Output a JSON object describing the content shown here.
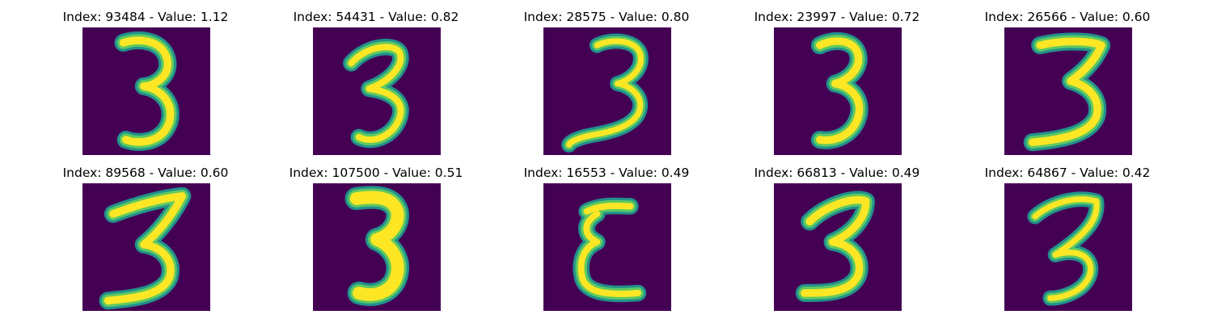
{
  "chart_data": [
    {
      "type": "heatmap",
      "title": "Index: 93484 - Value: 1.12",
      "index": 93484,
      "value": 1.12,
      "content": "handwritten digit 3",
      "colormap": "viridis"
    },
    {
      "type": "heatmap",
      "title": "Index: 54431 - Value: 0.82",
      "index": 54431,
      "value": 0.82,
      "content": "handwritten digit 3",
      "colormap": "viridis"
    },
    {
      "type": "heatmap",
      "title": "Index: 28575 - Value: 0.80",
      "index": 28575,
      "value": 0.8,
      "content": "handwritten digit 3",
      "colormap": "viridis"
    },
    {
      "type": "heatmap",
      "title": "Index: 23997 - Value: 0.72",
      "index": 23997,
      "value": 0.72,
      "content": "handwritten digit 3",
      "colormap": "viridis"
    },
    {
      "type": "heatmap",
      "title": "Index: 26566 - Value: 0.60",
      "index": 26566,
      "value": 0.6,
      "content": "handwritten digit 3",
      "colormap": "viridis"
    },
    {
      "type": "heatmap",
      "title": "Index: 89568 - Value: 0.60",
      "index": 89568,
      "value": 0.6,
      "content": "handwritten digit 3",
      "colormap": "viridis"
    },
    {
      "type": "heatmap",
      "title": "Index: 107500 - Value: 0.51",
      "index": 107500,
      "value": 0.51,
      "content": "handwritten digit 3",
      "colormap": "viridis"
    },
    {
      "type": "heatmap",
      "title": "Index: 16553 - Value: 0.49",
      "index": 16553,
      "value": 0.49,
      "content": "handwritten digit 3",
      "colormap": "viridis"
    },
    {
      "type": "heatmap",
      "title": "Index: 66813 - Value: 0.49",
      "index": 66813,
      "value": 0.49,
      "content": "handwritten digit 3",
      "colormap": "viridis"
    },
    {
      "type": "heatmap",
      "title": "Index: 64867 - Value: 0.42",
      "index": 64867,
      "value": 0.42,
      "content": "handwritten digit 3",
      "colormap": "viridis"
    }
  ],
  "colors": {
    "background": "#440154",
    "stroke_edge": "#21918c",
    "stroke_mid": "#5ec962",
    "stroke_core": "#fde725"
  }
}
